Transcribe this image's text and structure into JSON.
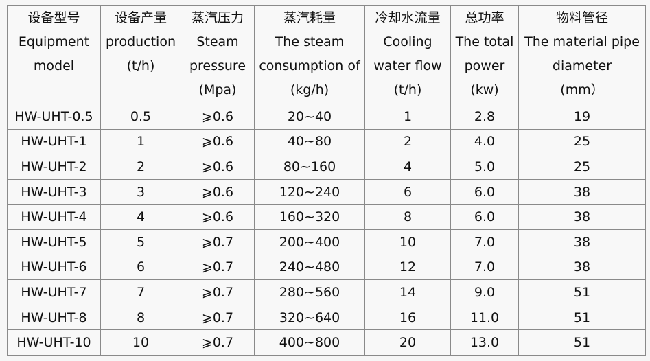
{
  "table": {
    "header": [
      [
        "设备型号",
        "Equipment",
        "model"
      ],
      [
        "设备产量",
        "production",
        "(t/h)"
      ],
      [
        "蒸汽压力",
        "Steam",
        "pressure",
        "(Mpa)"
      ],
      [
        "蒸汽耗量",
        "The steam",
        "consumption of",
        "(kg/h)"
      ],
      [
        "冷却水流量",
        "Cooling",
        "water flow",
        "(t/h)"
      ],
      [
        "总功率",
        "The total",
        "power",
        "(kw)"
      ],
      [
        "物料管径",
        "The material pipe",
        "diameter",
        "(mm）"
      ]
    ],
    "rows": [
      [
        "HW-UHT-0.5",
        "0.5",
        "⩾0.6",
        "20~40",
        "1",
        "2.8",
        "19"
      ],
      [
        "HW-UHT-1",
        "1",
        "⩾0.6",
        "40~80",
        "2",
        "4.0",
        "25"
      ],
      [
        "HW-UHT-2",
        "2",
        "⩾0.6",
        "80~160",
        "4",
        "5.0",
        "25"
      ],
      [
        "HW-UHT-3",
        "3",
        "⩾0.6",
        "120~240",
        "6",
        "6.0",
        "38"
      ],
      [
        "HW-UHT-4",
        "4",
        "⩾0.6",
        "160~320",
        "8",
        "6.0",
        "38"
      ],
      [
        "HW-UHT-5",
        "5",
        "⩾0.7",
        "200~400",
        "10",
        "7.0",
        "38"
      ],
      [
        "HW-UHT-6",
        "6",
        "⩾0.7",
        "240~480",
        "12",
        "7.0",
        "38"
      ],
      [
        "HW-UHT-7",
        "7",
        "⩾0.7",
        "280~560",
        "14",
        "9.0",
        "51"
      ],
      [
        "HW-UHT-8",
        "8",
        "⩾0.7",
        "320~640",
        "16",
        "11.0",
        "51"
      ],
      [
        "HW-UHT-10",
        "10",
        "⩾0.7",
        "400~800",
        "20",
        "13.0",
        "51"
      ]
    ]
  }
}
